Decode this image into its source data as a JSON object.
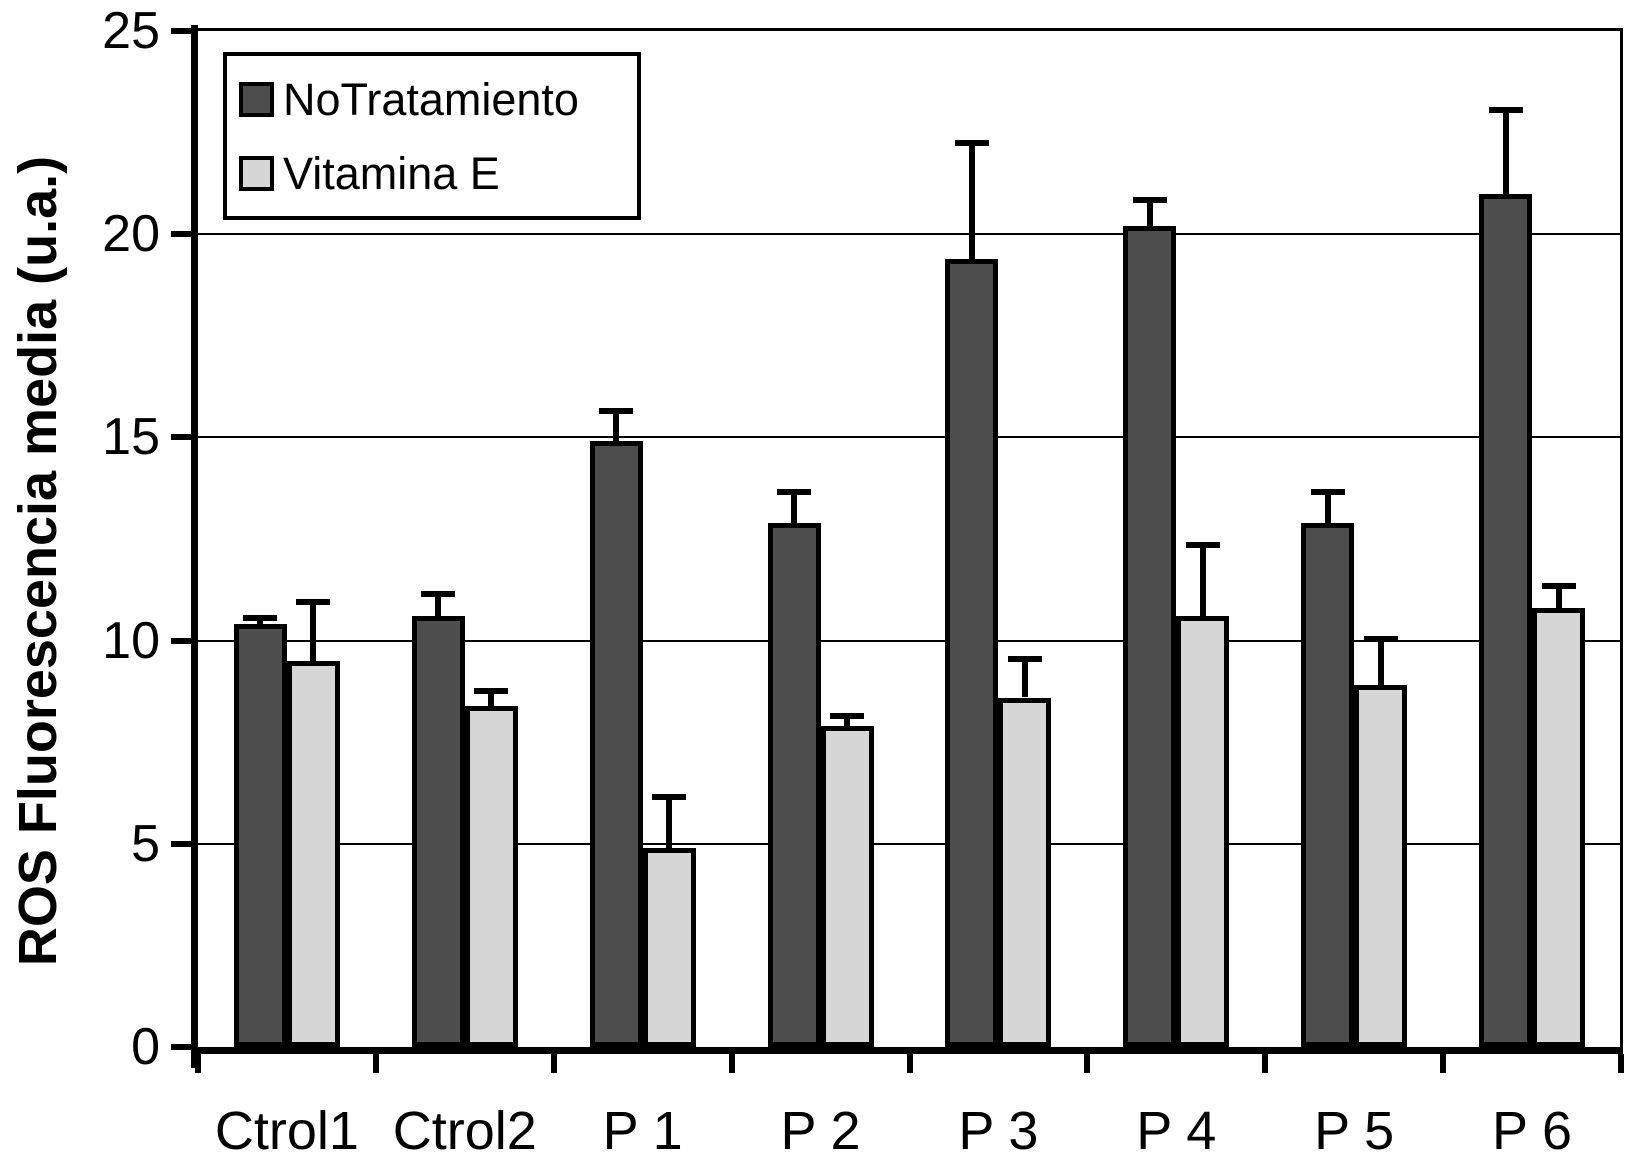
{
  "chart_data": {
    "type": "bar",
    "title": "",
    "xlabel": "",
    "ylabel": "ROS Fluorescencia media (u.a.)",
    "ylim": [
      0,
      25
    ],
    "yticks": [
      0,
      5,
      10,
      15,
      20,
      25
    ],
    "grid": "horizontal",
    "legend_position": "top-left-inside",
    "categories": [
      "Ctrol1",
      "Ctrol2",
      "P 1",
      "P 2",
      "P 3",
      "P 4",
      "P 5",
      "P 6"
    ],
    "series": [
      {
        "name": "NoTratamiento",
        "color": "#4d4d4d",
        "values": [
          10.4,
          10.6,
          14.9,
          12.9,
          19.4,
          20.2,
          12.9,
          21.0
        ],
        "errors_plus": [
          0.1,
          0.5,
          0.7,
          0.7,
          2.8,
          0.6,
          0.7,
          2.0
        ]
      },
      {
        "name": "Vitamina E",
        "color": "#d6d6d6",
        "values": [
          9.5,
          8.4,
          4.9,
          7.9,
          8.6,
          10.6,
          8.9,
          10.8
        ],
        "errors_plus": [
          1.4,
          0.3,
          1.2,
          0.2,
          0.9,
          1.7,
          1.1,
          0.5
        ]
      }
    ]
  },
  "style": {
    "background": "#ffffff",
    "axis_color": "#000000",
    "bar_border_color": "#000000",
    "error_bar_color": "#000000"
  }
}
